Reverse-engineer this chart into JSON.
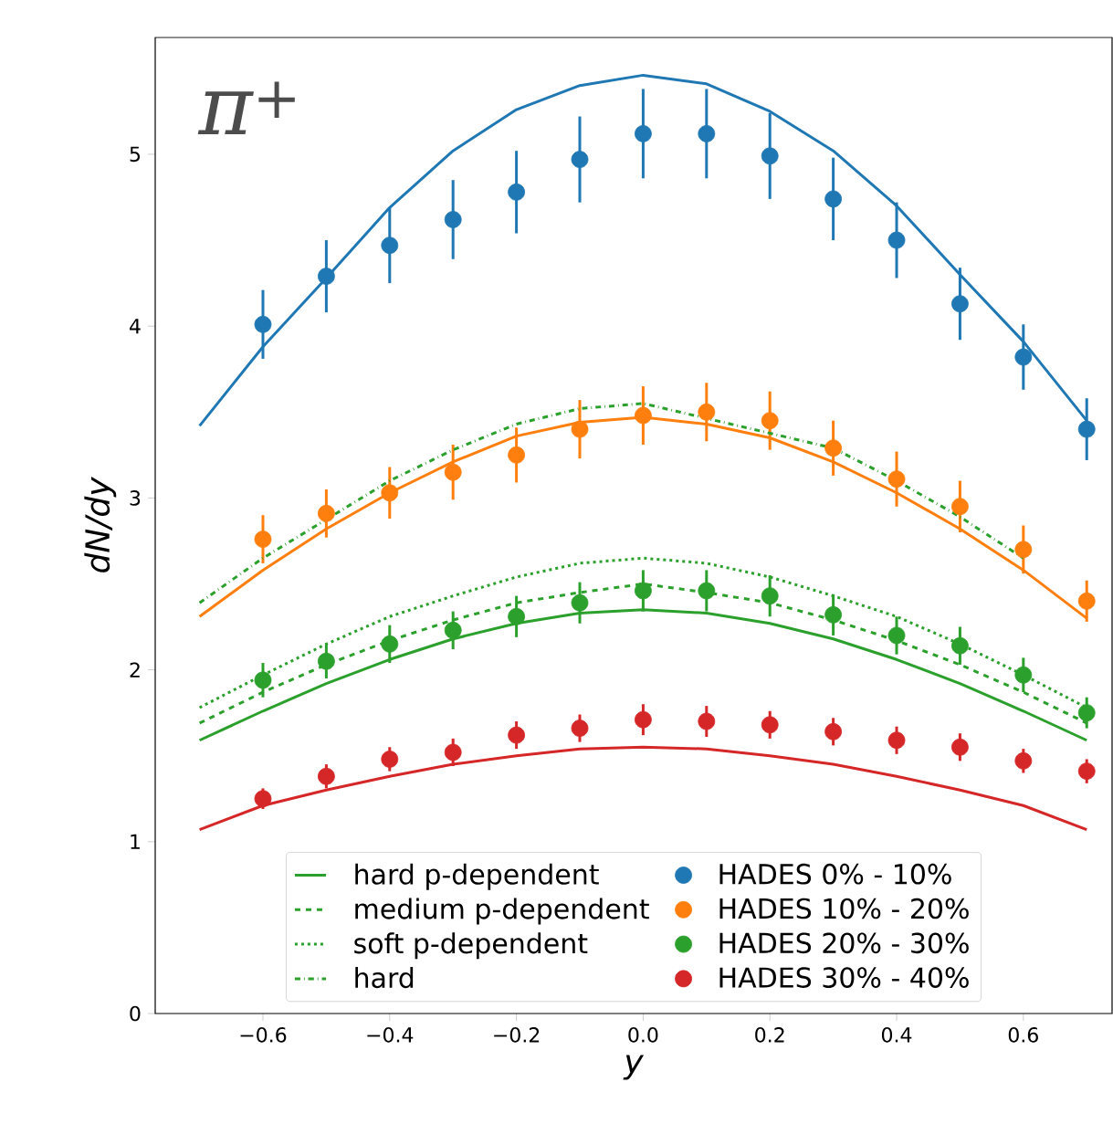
{
  "chart_data": {
    "type": "line",
    "title": "π$^{+}$",
    "xlabel": "y",
    "ylabel": "dN/dy",
    "xlim": [
      -0.77,
      0.74
    ],
    "ylim": [
      0,
      5.68
    ],
    "xticks": [
      {
        "value": -0.6,
        "label": "−0.6"
      },
      {
        "value": -0.4,
        "label": "−0.4"
      },
      {
        "value": -0.2,
        "label": "−0.2"
      },
      {
        "value": 0,
        "label": "0.0"
      },
      {
        "value": 0.2,
        "label": "0.2"
      },
      {
        "value": 0.4,
        "label": "0.4"
      },
      {
        "value": 0.6,
        "label": "0.6"
      }
    ],
    "yticks": [
      0,
      1,
      2,
      3,
      4,
      5
    ],
    "legend": "bottom",
    "series": [
      {
        "color": "#1f77b4",
        "line_style": "solid",
        "x": [
          -0.7,
          -0.6,
          -0.5,
          -0.4,
          -0.3,
          -0.2,
          -0.1,
          0.0,
          0.1,
          0.2,
          0.3,
          0.4,
          0.5,
          0.6,
          0.7
        ],
        "values": [
          3.42,
          3.88,
          4.28,
          4.69,
          5.02,
          5.26,
          5.4,
          5.46,
          5.41,
          5.25,
          5.02,
          4.7,
          4.3,
          3.91,
          3.45
        ]
      },
      {
        "color": "#ff7f0e",
        "line_style": "solid",
        "x": [
          -0.7,
          -0.6,
          -0.5,
          -0.4,
          -0.3,
          -0.2,
          -0.1,
          0.0,
          0.1,
          0.2,
          0.3,
          0.4,
          0.5,
          0.6,
          0.7
        ],
        "values": [
          2.31,
          2.58,
          2.82,
          3.03,
          3.21,
          3.36,
          3.44,
          3.47,
          3.43,
          3.35,
          3.21,
          3.03,
          2.82,
          2.58,
          2.3
        ]
      },
      {
        "name": "hard p-dependent",
        "color": "#2ca02c",
        "line_style": "solid",
        "x": [
          -0.7,
          -0.6,
          -0.5,
          -0.4,
          -0.3,
          -0.2,
          -0.1,
          0.0,
          0.1,
          0.2,
          0.3,
          0.4,
          0.5,
          0.6,
          0.7
        ],
        "values": [
          1.59,
          1.76,
          1.92,
          2.06,
          2.18,
          2.27,
          2.33,
          2.35,
          2.33,
          2.27,
          2.18,
          2.06,
          1.92,
          1.76,
          1.59
        ]
      },
      {
        "name": "medium p-dependent",
        "color": "#2ca02c",
        "line_style": "dashed",
        "x": [
          -0.7,
          -0.6,
          -0.5,
          -0.4,
          -0.3,
          -0.2,
          -0.1,
          0.0,
          0.1,
          0.2,
          0.3,
          0.4,
          0.5,
          0.6,
          0.7
        ],
        "values": [
          1.69,
          1.87,
          2.03,
          2.17,
          2.29,
          2.39,
          2.45,
          2.5,
          2.45,
          2.39,
          2.29,
          2.17,
          2.03,
          1.87,
          1.69
        ]
      },
      {
        "name": "soft p-dependent",
        "color": "#2ca02c",
        "line_style": "dotted",
        "x": [
          -0.7,
          -0.6,
          -0.5,
          -0.4,
          -0.3,
          -0.2,
          -0.1,
          0.0,
          0.1,
          0.2,
          0.3,
          0.4,
          0.5,
          0.6,
          0.7
        ],
        "values": [
          1.78,
          1.97,
          2.15,
          2.31,
          2.43,
          2.54,
          2.62,
          2.65,
          2.62,
          2.54,
          2.43,
          2.31,
          2.15,
          1.97,
          1.78
        ]
      },
      {
        "name": "hard",
        "color": "#2ca02c",
        "line_style": "dashdot",
        "x": [
          -0.7,
          -0.6,
          -0.5,
          -0.4,
          -0.3,
          -0.2,
          -0.1,
          0.0,
          0.1,
          0.2,
          0.3,
          0.4,
          0.5,
          0.6
        ],
        "values": [
          2.39,
          2.65,
          null,
          3.1,
          3.28,
          3.43,
          3.52,
          3.55,
          null,
          null,
          3.29,
          3.1,
          2.89,
          2.65
        ]
      },
      {
        "color": "#d62728",
        "line_style": "solid",
        "x": [
          -0.7,
          -0.6,
          -0.5,
          -0.4,
          -0.3,
          -0.2,
          -0.1,
          0.0,
          0.1,
          0.2,
          0.3,
          0.4,
          0.5,
          0.6,
          0.7
        ],
        "values": [
          1.07,
          1.21,
          1.3,
          1.38,
          1.45,
          1.5,
          1.54,
          1.55,
          1.54,
          1.5,
          1.45,
          1.38,
          1.3,
          1.21,
          1.07
        ]
      },
      {
        "type": "scatter",
        "name": "HADES 0% - 10%",
        "color": "#1f77b4",
        "marker": "circle",
        "x": [
          -0.6,
          -0.5,
          -0.4,
          -0.3,
          -0.2,
          -0.1,
          0.0,
          0.1,
          0.2,
          0.3,
          0.4,
          0.5,
          0.6,
          0.7
        ],
        "values": [
          4.01,
          4.29,
          4.47,
          4.62,
          4.78,
          4.97,
          5.12,
          5.12,
          4.99,
          4.74,
          4.5,
          4.13,
          3.82,
          3.4
        ],
        "errors": [
          0.2,
          0.21,
          0.22,
          0.23,
          0.24,
          0.25,
          0.26,
          0.26,
          0.25,
          0.24,
          0.22,
          0.21,
          0.19,
          0.18
        ]
      },
      {
        "type": "scatter",
        "name": "HADES 10% - 20%",
        "color": "#ff7f0e",
        "marker": "circle",
        "x": [
          -0.6,
          -0.5,
          -0.4,
          -0.3,
          -0.2,
          -0.1,
          0.0,
          0.1,
          0.2,
          0.3,
          0.4,
          0.5,
          0.6,
          0.7
        ],
        "values": [
          2.76,
          2.91,
          3.03,
          3.15,
          3.25,
          3.4,
          3.48,
          3.5,
          3.45,
          3.29,
          3.11,
          2.95,
          2.7,
          2.4
        ],
        "errors": [
          0.14,
          0.14,
          0.15,
          0.16,
          0.16,
          0.17,
          0.17,
          0.17,
          0.17,
          0.16,
          0.16,
          0.15,
          0.14,
          0.12
        ]
      },
      {
        "type": "scatter",
        "name": "HADES 20% - 30%",
        "color": "#2ca02c",
        "marker": "circle",
        "x": [
          -0.6,
          -0.5,
          -0.4,
          -0.3,
          -0.2,
          -0.1,
          0.0,
          0.1,
          0.2,
          0.3,
          0.4,
          0.5,
          0.6,
          0.7
        ],
        "values": [
          1.94,
          2.05,
          2.15,
          2.23,
          2.31,
          2.39,
          2.46,
          2.46,
          2.43,
          2.32,
          2.2,
          2.14,
          1.97,
          1.75
        ],
        "errors": [
          0.1,
          0.1,
          0.11,
          0.11,
          0.12,
          0.12,
          0.12,
          0.12,
          0.12,
          0.12,
          0.11,
          0.11,
          0.1,
          0.09
        ]
      },
      {
        "type": "scatter",
        "name": "HADES 30% - 40%",
        "color": "#d62728",
        "marker": "circle",
        "x": [
          -0.6,
          -0.5,
          -0.4,
          -0.3,
          -0.2,
          -0.1,
          0.0,
          0.1,
          0.2,
          0.3,
          0.4,
          0.5,
          0.6,
          0.7
        ],
        "values": [
          1.25,
          1.38,
          1.48,
          1.52,
          1.62,
          1.66,
          1.71,
          1.7,
          1.68,
          1.64,
          1.59,
          1.55,
          1.47,
          1.41
        ],
        "errors": [
          0.06,
          0.07,
          0.07,
          0.08,
          0.08,
          0.08,
          0.09,
          0.09,
          0.08,
          0.08,
          0.08,
          0.08,
          0.07,
          0.07
        ]
      }
    ]
  }
}
